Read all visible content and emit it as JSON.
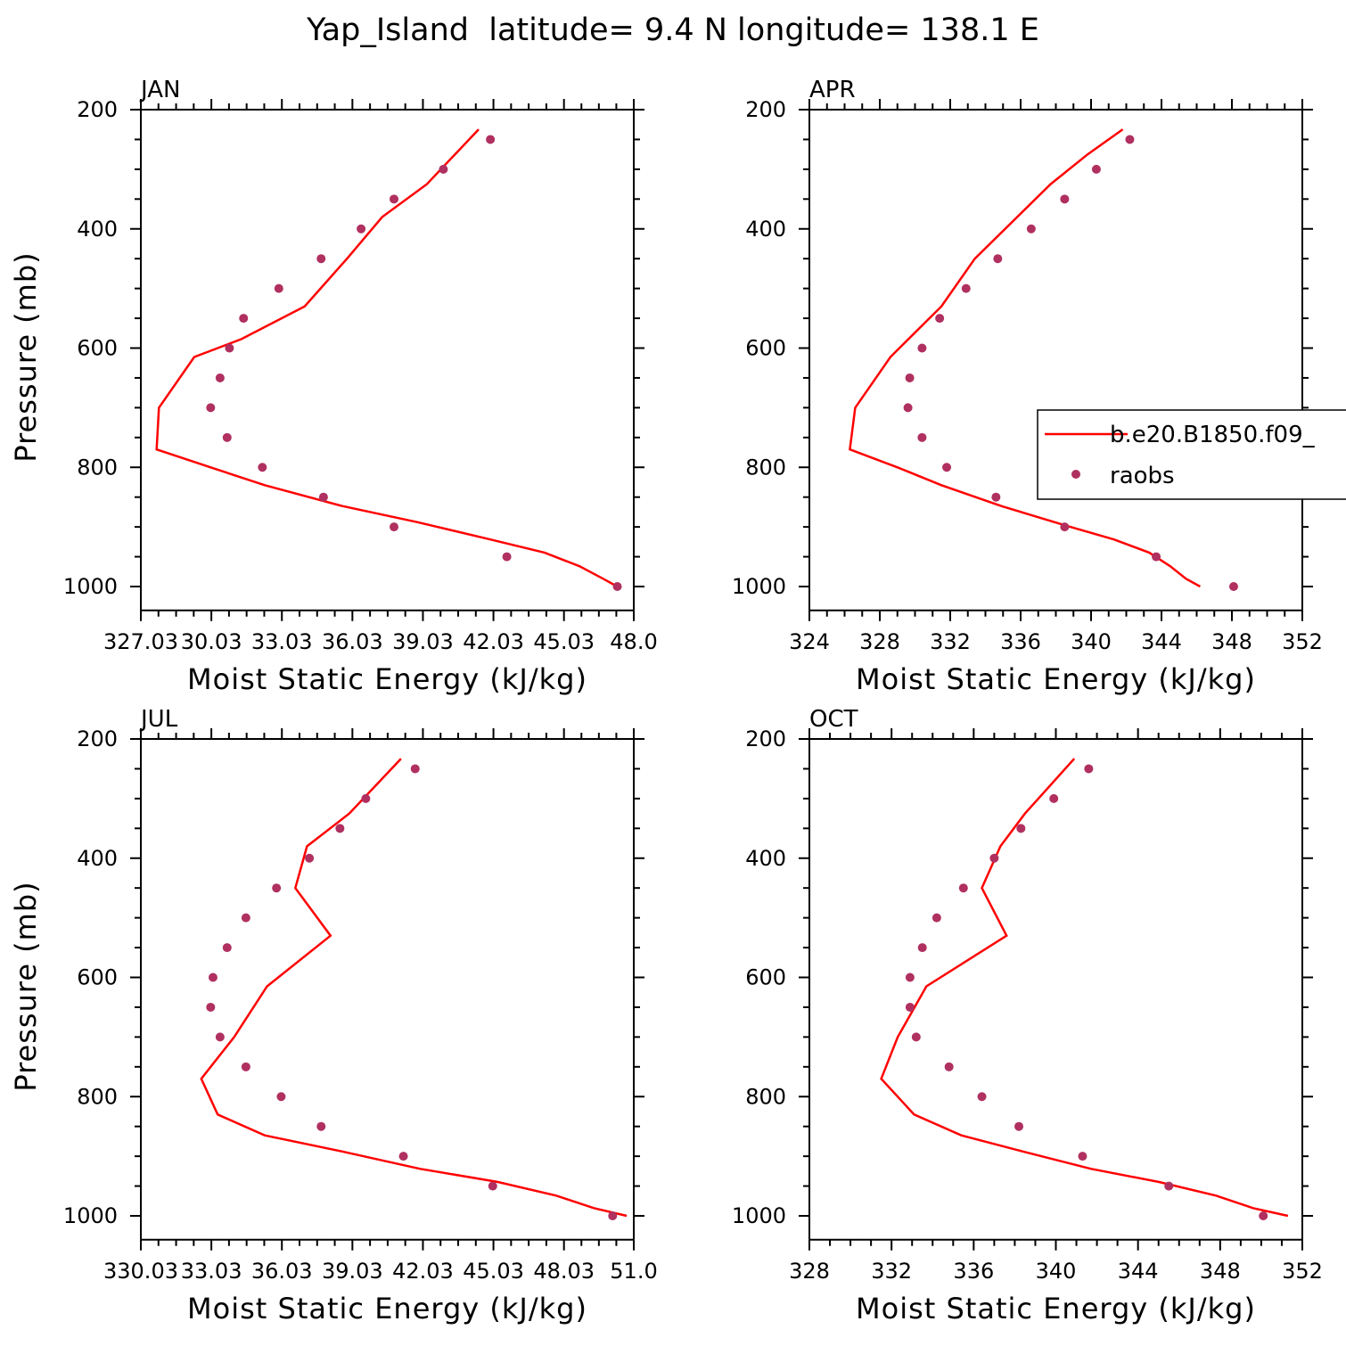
{
  "title": "Yap_Island  latitude= 9.4 N longitude= 138.1 E",
  "colors": {
    "model": "#ff0000",
    "obs": "#b03060",
    "axis": "#000000"
  },
  "legend": {
    "model_label": "b.e20.B1850.f09_",
    "obs_label": "raobs"
  },
  "chart_data": [
    {
      "type": "line",
      "panel": "JAN",
      "xlabel": "Moist Static Energy (kJ/kg)",
      "ylabel": "Pressure (mb)",
      "xlim": [
        327.03,
        348.0
      ],
      "ylim": [
        1000,
        200
      ],
      "xticks": [
        327.03,
        330.03,
        333.03,
        336.03,
        339.03,
        342.03,
        345.03,
        348.0
      ],
      "xtick_labels": [
        "327.03",
        "30.03",
        "33.03",
        "36.03",
        "39.03",
        "42.03",
        "45.03",
        "48.0"
      ],
      "yticks": [
        200,
        400,
        600,
        800,
        1000
      ],
      "series": [
        {
          "name": "b.e20.B1850.f09_",
          "kind": "line",
          "x": [
            341.4,
            339.2,
            337.3,
            335.8,
            334.0,
            331.3,
            329.3,
            327.8,
            327.7,
            330.0,
            332.3,
            335.6,
            338.8,
            341.9,
            344.2,
            345.7,
            346.7,
            347.3
          ],
          "y": [
            233,
            325,
            380,
            450,
            530,
            585,
            615,
            700,
            770,
            800,
            830,
            865,
            892,
            921,
            943,
            966,
            987,
            1000
          ]
        },
        {
          "name": "raobs",
          "kind": "scatter",
          "x": [
            341.9,
            339.9,
            337.8,
            336.4,
            334.7,
            332.9,
            331.4,
            330.8,
            330.4,
            330.0,
            330.7,
            332.2,
            334.8,
            337.8,
            342.6,
            347.3
          ],
          "y": [
            250,
            300,
            350,
            400,
            450,
            500,
            550,
            600,
            650,
            700,
            750,
            800,
            850,
            900,
            950,
            1000
          ]
        }
      ]
    },
    {
      "type": "line",
      "panel": "APR",
      "xlabel": "Moist Static Energy (kJ/kg)",
      "ylabel": "",
      "xlim": [
        324,
        352
      ],
      "ylim": [
        1000,
        200
      ],
      "xticks": [
        324,
        328,
        332,
        336,
        340,
        344,
        348,
        352
      ],
      "xtick_labels": [
        "324",
        "328",
        "332",
        "336",
        "340",
        "344",
        "348",
        "352"
      ],
      "yticks": [
        200,
        400,
        600,
        800,
        1000
      ],
      "series": [
        {
          "name": "b.e20.B1850.f09_",
          "kind": "line",
          "x": [
            341.8,
            339.8,
            337.7,
            333.4,
            331.5,
            328.6,
            326.6,
            326.3,
            329.0,
            331.5,
            334.9,
            338.6,
            341.3,
            343.3,
            344.5,
            345.4,
            346.2
          ],
          "y": [
            233,
            275,
            325,
            450,
            530,
            615,
            700,
            770,
            800,
            830,
            865,
            898,
            921,
            943,
            966,
            987,
            1000
          ]
        },
        {
          "name": "raobs",
          "kind": "scatter",
          "x": [
            342.2,
            340.3,
            338.5,
            336.6,
            334.7,
            332.9,
            331.4,
            330.4,
            329.7,
            329.6,
            330.4,
            331.8,
            334.6,
            338.5,
            343.7,
            348.1
          ],
          "y": [
            250,
            300,
            350,
            400,
            450,
            500,
            550,
            600,
            650,
            700,
            750,
            800,
            850,
            900,
            950,
            1000
          ]
        }
      ]
    },
    {
      "type": "line",
      "panel": "JUL",
      "xlabel": "Moist Static Energy (kJ/kg)",
      "ylabel": "Pressure (mb)",
      "xlim": [
        330.03,
        351.0
      ],
      "ylim": [
        1000,
        200
      ],
      "xticks": [
        330.03,
        333.03,
        336.03,
        339.03,
        342.03,
        345.03,
        348.03,
        351.0
      ],
      "xtick_labels": [
        "330.03",
        "33.03",
        "36.03",
        "39.03",
        "42.03",
        "45.03",
        "48.03",
        "51.0"
      ],
      "yticks": [
        200,
        400,
        600,
        800,
        1000
      ],
      "series": [
        {
          "name": "b.e20.B1850.f09_",
          "kind": "line",
          "x": [
            341.1,
            338.9,
            337.1,
            336.6,
            338.1,
            335.4,
            334.0,
            332.6,
            333.3,
            335.3,
            338.6,
            341.9,
            345.2,
            347.7,
            349.3,
            350.7
          ],
          "y": [
            233,
            325,
            380,
            450,
            530,
            615,
            700,
            770,
            830,
            865,
            892,
            921,
            943,
            966,
            987,
            1000
          ]
        },
        {
          "name": "raobs",
          "kind": "scatter",
          "x": [
            341.7,
            339.6,
            338.5,
            337.2,
            335.8,
            334.5,
            333.7,
            333.1,
            333.0,
            333.4,
            334.5,
            336.0,
            337.7,
            341.2,
            345.0,
            350.1
          ],
          "y": [
            250,
            300,
            350,
            400,
            450,
            500,
            550,
            600,
            650,
            700,
            750,
            800,
            850,
            900,
            950,
            1000
          ]
        }
      ]
    },
    {
      "type": "line",
      "panel": "OCT",
      "xlabel": "Moist Static Energy (kJ/kg)",
      "ylabel": "",
      "xlim": [
        328,
        352
      ],
      "ylim": [
        1000,
        200
      ],
      "xticks": [
        328,
        332,
        336,
        340,
        344,
        348,
        352
      ],
      "xtick_labels": [
        "328",
        "332",
        "336",
        "340",
        "344",
        "348",
        "352"
      ],
      "yticks": [
        200,
        400,
        600,
        800,
        1000
      ],
      "series": [
        {
          "name": "b.e20.B1850.f09_",
          "kind": "line",
          "x": [
            340.9,
            338.5,
            337.3,
            336.4,
            337.6,
            333.7,
            332.3,
            331.5,
            333.1,
            335.4,
            338.4,
            341.7,
            345.0,
            347.8,
            349.6,
            351.3
          ],
          "y": [
            233,
            325,
            380,
            450,
            530,
            615,
            700,
            770,
            830,
            865,
            892,
            921,
            943,
            966,
            987,
            1000
          ]
        },
        {
          "name": "raobs",
          "kind": "scatter",
          "x": [
            341.6,
            339.9,
            338.3,
            337.0,
            335.5,
            334.2,
            333.5,
            332.9,
            332.9,
            333.2,
            334.8,
            336.4,
            338.2,
            341.3,
            345.5,
            350.1
          ],
          "y": [
            250,
            300,
            350,
            400,
            450,
            500,
            550,
            600,
            650,
            700,
            750,
            800,
            850,
            900,
            950,
            1000
          ]
        }
      ]
    }
  ]
}
